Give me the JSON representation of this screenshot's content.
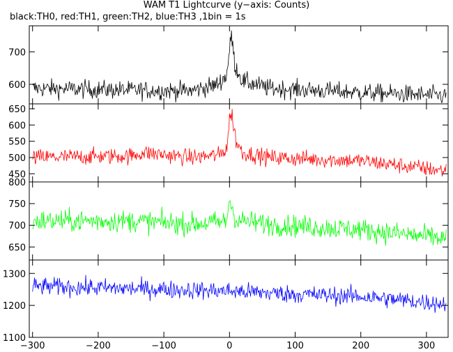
{
  "title": "WAM T1 Lightcurve (y−axis: Counts)",
  "subtitle": "black:TH0, red:TH1, green:TH2, blue:TH3 ,1bin = 1s",
  "chart_data": {
    "type": "line",
    "x_range": [
      -305,
      333
    ],
    "x_ticks": [
      -300,
      -200,
      -100,
      0,
      100,
      200,
      300
    ],
    "x_tick_labels": [
      "−300",
      "−200",
      "−100",
      "0",
      "100",
      "200",
      "300"
    ],
    "panels": [
      {
        "name": "TH0",
        "color": "#000000",
        "ylim": [
          540,
          780
        ],
        "y_ticks": [
          600,
          700
        ],
        "y_tick_labels": [
          "600",
          "700"
        ],
        "trend": [
          [
            -300,
            588
          ],
          [
            -150,
            582
          ],
          [
            -60,
            580
          ],
          [
            -20,
            598
          ],
          [
            -5,
            625
          ],
          [
            0,
            700
          ],
          [
            3,
            755
          ],
          [
            8,
            660
          ],
          [
            20,
            610
          ],
          [
            60,
            588
          ],
          [
            200,
            575
          ],
          [
            325,
            565
          ]
        ],
        "noise": 20
      },
      {
        "name": "TH1",
        "color": "#ff0000",
        "ylim": [
          425,
          665
        ],
        "y_ticks": [
          450,
          500,
          550,
          600,
          650
        ],
        "y_tick_labels": [
          "450",
          "500",
          "550",
          "600",
          "650"
        ],
        "trend": [
          [
            -300,
            500
          ],
          [
            -150,
            505
          ],
          [
            -130,
            515
          ],
          [
            -60,
            500
          ],
          [
            -15,
            508
          ],
          [
            -4,
            530
          ],
          [
            0,
            620
          ],
          [
            4,
            630
          ],
          [
            10,
            550
          ],
          [
            20,
            515
          ],
          [
            60,
            500
          ],
          [
            200,
            490
          ],
          [
            325,
            460
          ]
        ],
        "noise": 18
      },
      {
        "name": "TH2",
        "color": "#00ff00",
        "ylim": [
          620,
          800
        ],
        "y_ticks": [
          650,
          700,
          750,
          800
        ],
        "y_tick_labels": [
          "650",
          "700",
          "750",
          "800"
        ],
        "trend": [
          [
            -300,
            710
          ],
          [
            -150,
            710
          ],
          [
            -60,
            703
          ],
          [
            -5,
            708
          ],
          [
            0,
            760
          ],
          [
            3,
            745
          ],
          [
            10,
            712
          ],
          [
            60,
            702
          ],
          [
            200,
            690
          ],
          [
            325,
            670
          ]
        ],
        "noise": 18
      },
      {
        "name": "TH3",
        "color": "#0000ff",
        "ylim": [
          1100,
          1342
        ],
        "y_ticks": [
          1100,
          1200,
          1300
        ],
        "y_tick_labels": [
          "1100",
          "1200",
          "1300"
        ],
        "trend": [
          [
            -300,
            1260
          ],
          [
            -200,
            1255
          ],
          [
            -100,
            1250
          ],
          [
            0,
            1245
          ],
          [
            100,
            1235
          ],
          [
            200,
            1228
          ],
          [
            325,
            1205
          ]
        ],
        "noise": 20
      }
    ]
  }
}
